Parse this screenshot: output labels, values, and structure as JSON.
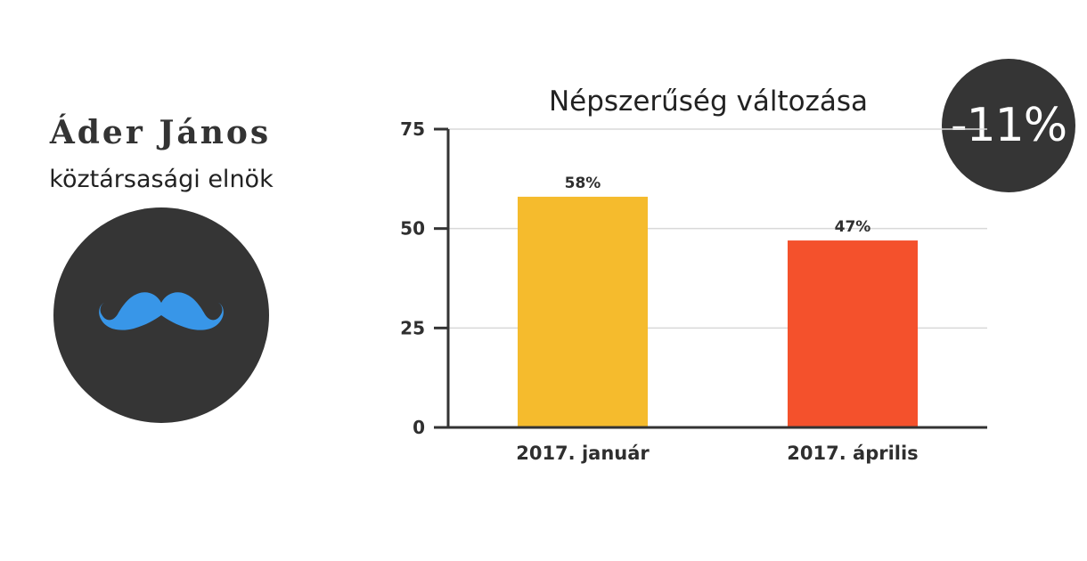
{
  "person": {
    "name": "Áder János",
    "role": "köztársasági elnök",
    "avatar_icon": "mustache-icon"
  },
  "change": {
    "value": "-11%"
  },
  "colors": {
    "badge_background": "#353535",
    "mustache": "#3896e8",
    "bar_january": "#f5bb2d",
    "bar_april": "#f4512c",
    "gridline": "#d9d9d9",
    "axis": "#333333"
  },
  "chart_data": {
    "type": "bar",
    "title": "Népszerűség változása",
    "categories": [
      "2017. január",
      "2017. április"
    ],
    "values": [
      58,
      47
    ],
    "data_labels": [
      "58%",
      "47%"
    ],
    "ylim": [
      0,
      75
    ],
    "yticks": [
      0,
      25,
      50,
      75
    ],
    "grid": true,
    "legend": "none",
    "xlabel": "",
    "ylabel": ""
  }
}
